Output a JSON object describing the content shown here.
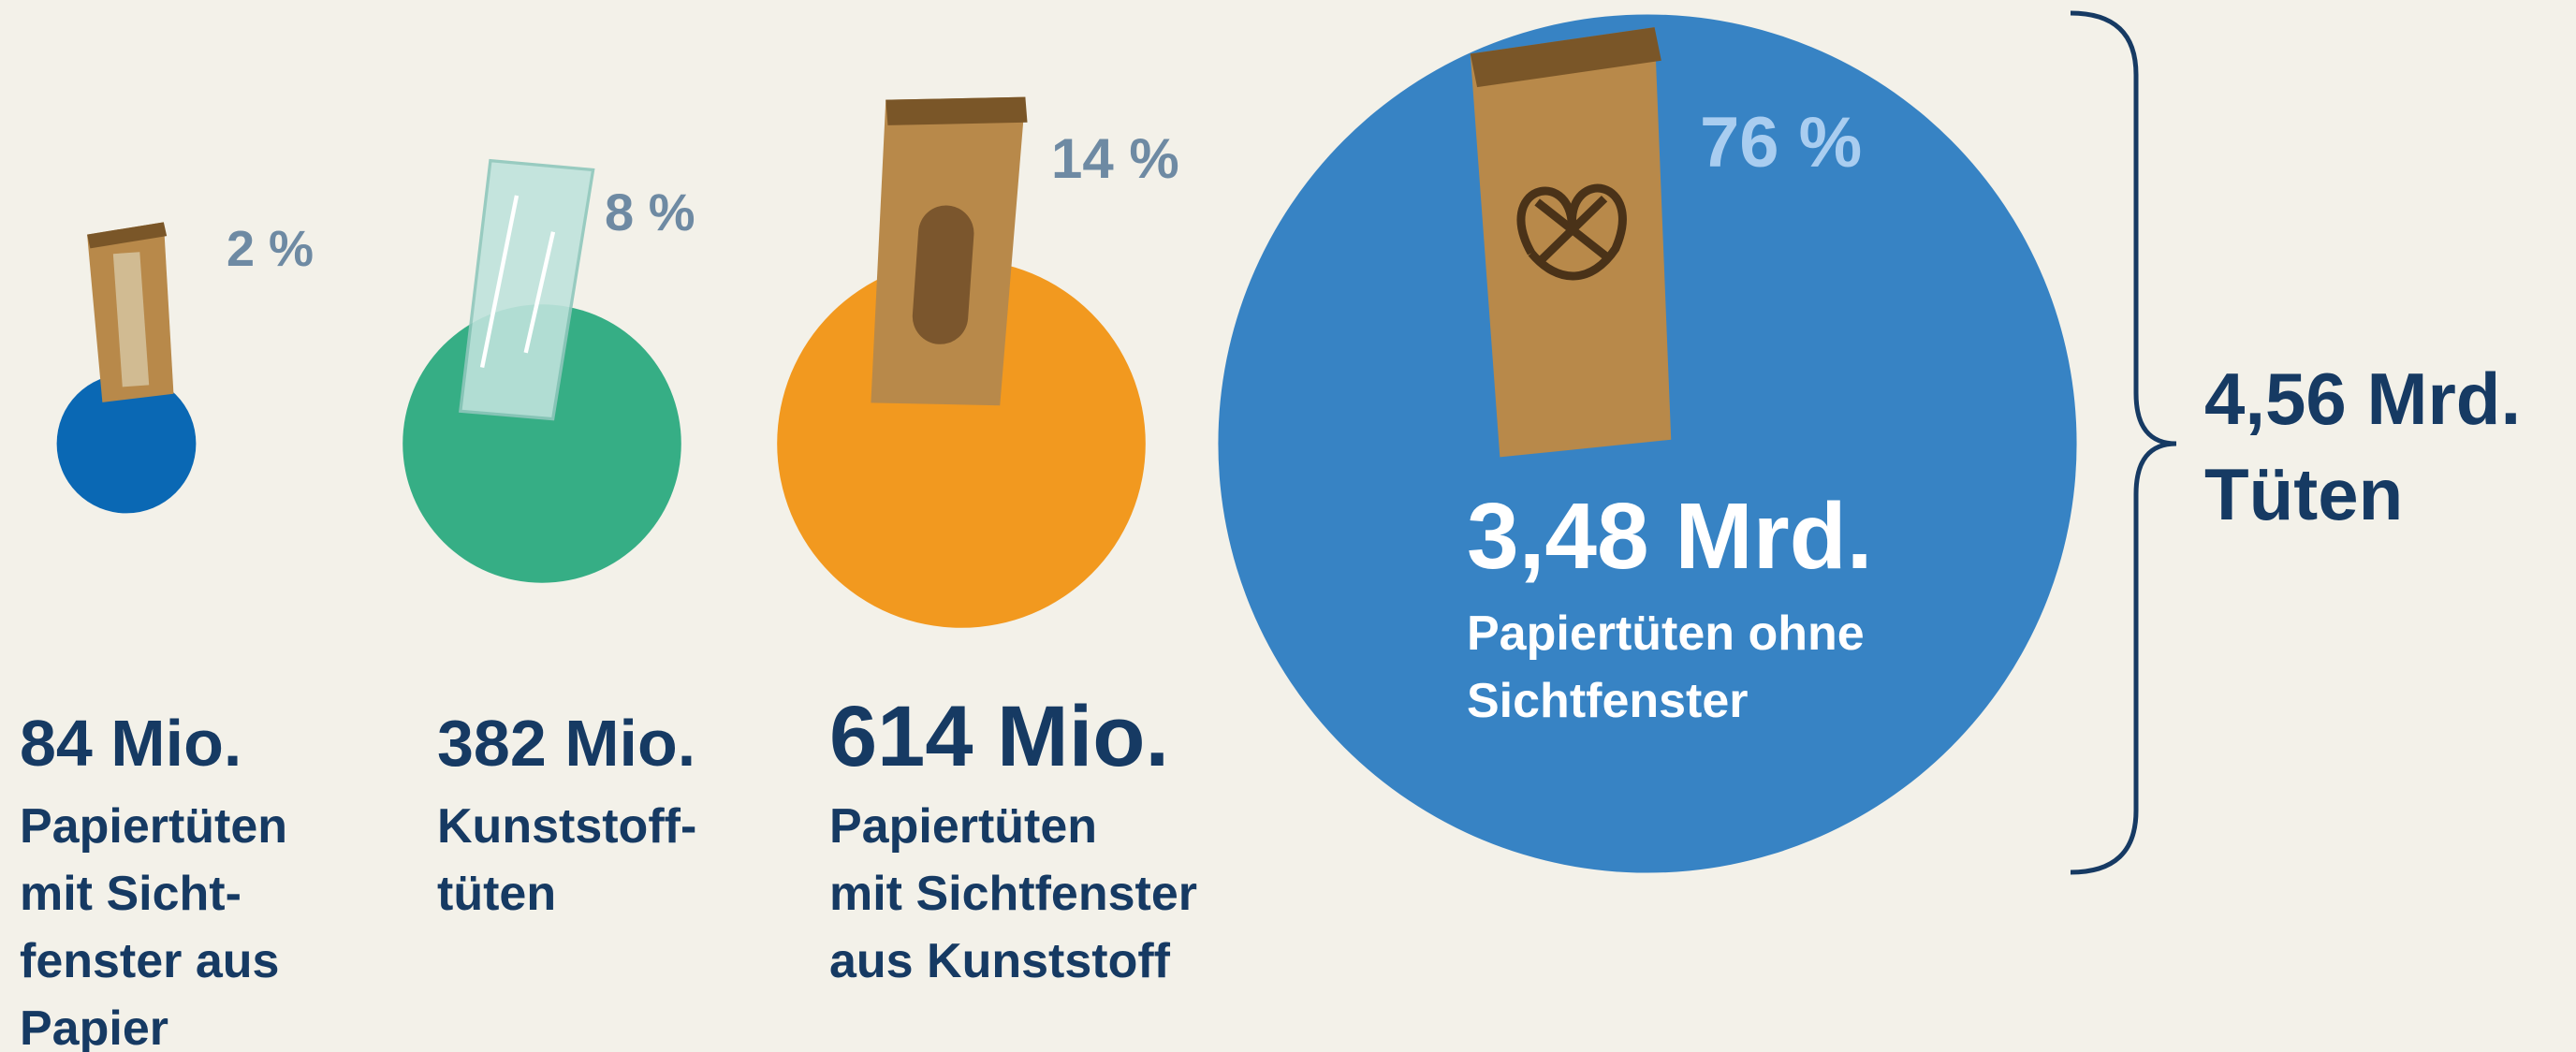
{
  "chart_data": {
    "type": "bubble",
    "values": [
      2,
      8,
      14,
      76
    ],
    "value_labels": [
      "2 %",
      "8 %",
      "14 %",
      "76 %"
    ],
    "colors": [
      "#0a68b4",
      "#36ae85",
      "#f2991f",
      "#3783c4"
    ],
    "amounts": [
      "84 Mio.",
      "382 Mio.",
      "614 Mio.",
      "3,48 Mrd."
    ],
    "descriptions": [
      [
        "Papiertüten",
        "mit Sicht-",
        "fenster aus",
        "Papier"
      ],
      [
        "Kunststoff-",
        "tüten"
      ],
      [
        "Papiertüten",
        "mit Sichtfenster",
        "aus Kunststoff"
      ],
      [
        "Papiertüten ohne",
        "Sichtfenster"
      ]
    ],
    "total": [
      "4,56 Mrd.",
      "Tüten"
    ]
  }
}
